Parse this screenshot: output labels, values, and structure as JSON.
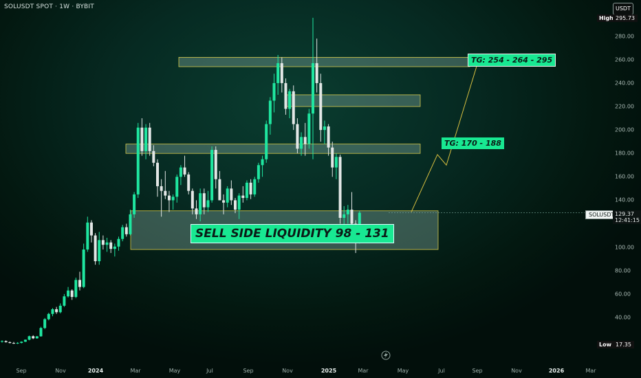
{
  "header": {
    "symbol_line": "SOLUSDT SPOT · 1W · BYBIT"
  },
  "price_axis": {
    "unit_button": "USDT",
    "high_label": "High",
    "high_value": "295.73",
    "low_label": "Low",
    "low_value": "17.35",
    "ticks": [
      "280.00",
      "260.00",
      "240.00",
      "220.00",
      "200.00",
      "180.00",
      "160.00",
      "140.00",
      "100.00",
      "80.00",
      "60.00",
      "40.00"
    ],
    "last_symbol": "SOLUSDT",
    "last_price": "129.37",
    "countdown": "12:41:15"
  },
  "time_axis": {
    "ticks": [
      {
        "label": "Sep",
        "bold": false
      },
      {
        "label": "Nov",
        "bold": false
      },
      {
        "label": "2024",
        "bold": true
      },
      {
        "label": "Mar",
        "bold": false
      },
      {
        "label": "May",
        "bold": false
      },
      {
        "label": "Jul",
        "bold": false
      },
      {
        "label": "Sep",
        "bold": false
      },
      {
        "label": "Nov",
        "bold": false
      },
      {
        "label": "2025",
        "bold": true
      },
      {
        "label": "Mar",
        "bold": false
      },
      {
        "label": "May",
        "bold": false
      },
      {
        "label": "Jul",
        "bold": false
      },
      {
        "label": "Sep",
        "bold": false
      },
      {
        "label": "Nov",
        "bold": false
      },
      {
        "label": "2026",
        "bold": true
      },
      {
        "label": "Mar",
        "bold": false
      }
    ]
  },
  "annotations": {
    "liquidity_label": "SELL SIDE LIQUIDITY 98 - 131",
    "target_mid": "TG: 170 - 188",
    "target_high": "TG: 254 - 264 - 295"
  },
  "colors": {
    "up": "#1fe6a0",
    "down": "#e3e7e6",
    "zone_border": "#d6c94a",
    "label_bg": "#18e892",
    "projection": "#d9c040"
  },
  "chart_data": {
    "type": "candlestick",
    "symbol": "SOLUSDT",
    "interval": "1W",
    "exchange": "BYBIT",
    "y_range": [
      18,
      300
    ],
    "last_price": 129.37,
    "high": 295.73,
    "low": 17.35,
    "zones": [
      {
        "low": 98,
        "high": 131,
        "label": "SELL SIDE LIQUIDITY 98 - 131"
      },
      {
        "low": 180,
        "high": 188
      },
      {
        "low": 220,
        "high": 230
      },
      {
        "low": 254,
        "high": 262
      }
    ],
    "targets": [
      "TG: 170 - 188",
      "TG: 254 - 264 - 295"
    ],
    "projection_path": [
      130,
      179,
      170,
      260
    ],
    "candles": [
      {
        "o": 19.5,
        "h": 20.5,
        "l": 18.5,
        "c": 19.8
      },
      {
        "o": 19.8,
        "h": 20.4,
        "l": 18.6,
        "c": 18.9
      },
      {
        "o": 18.9,
        "h": 19.5,
        "l": 17.9,
        "c": 18.2
      },
      {
        "o": 18.2,
        "h": 19.1,
        "l": 17.4,
        "c": 17.8
      },
      {
        "o": 17.8,
        "h": 18.9,
        "l": 17.35,
        "c": 18.3
      },
      {
        "o": 18.3,
        "h": 19.6,
        "l": 17.9,
        "c": 19.3
      },
      {
        "o": 19.3,
        "h": 21.2,
        "l": 19.0,
        "c": 21.0
      },
      {
        "o": 21.0,
        "h": 24.5,
        "l": 20.5,
        "c": 24.0
      },
      {
        "o": 24.0,
        "h": 24.8,
        "l": 21.5,
        "c": 22.2
      },
      {
        "o": 22.2,
        "h": 24.2,
        "l": 21.8,
        "c": 23.9
      },
      {
        "o": 23.9,
        "h": 32.0,
        "l": 23.6,
        "c": 31.0
      },
      {
        "o": 31.0,
        "h": 39.5,
        "l": 30.0,
        "c": 38.5
      },
      {
        "o": 38.5,
        "h": 44.0,
        "l": 37.5,
        "c": 43.0
      },
      {
        "o": 43.0,
        "h": 48.0,
        "l": 41.0,
        "c": 47.0
      },
      {
        "o": 47.0,
        "h": 49.0,
        "l": 43.0,
        "c": 44.5
      },
      {
        "o": 44.5,
        "h": 52.0,
        "l": 43.5,
        "c": 50.0
      },
      {
        "o": 50.0,
        "h": 60.0,
        "l": 49.0,
        "c": 58.0
      },
      {
        "o": 58.0,
        "h": 66.0,
        "l": 57.0,
        "c": 63.0
      },
      {
        "o": 63.0,
        "h": 64.0,
        "l": 55.0,
        "c": 57.5
      },
      {
        "o": 57.5,
        "h": 74.0,
        "l": 56.5,
        "c": 72.0
      },
      {
        "o": 72.0,
        "h": 79.0,
        "l": 63.0,
        "c": 66.0
      },
      {
        "o": 66.0,
        "h": 103.0,
        "l": 65.0,
        "c": 98.0
      },
      {
        "o": 98.0,
        "h": 126.0,
        "l": 96.0,
        "c": 121.0
      },
      {
        "o": 121.0,
        "h": 123.0,
        "l": 104.0,
        "c": 110.0
      },
      {
        "o": 110.0,
        "h": 112.0,
        "l": 85.0,
        "c": 88.0
      },
      {
        "o": 88.0,
        "h": 113.0,
        "l": 85.0,
        "c": 106.0
      },
      {
        "o": 106.0,
        "h": 110.0,
        "l": 98.0,
        "c": 102.0
      },
      {
        "o": 102.0,
        "h": 108.0,
        "l": 96.0,
        "c": 104.0
      },
      {
        "o": 104.0,
        "h": 106.0,
        "l": 95.0,
        "c": 98.5
      },
      {
        "o": 98.5,
        "h": 103.0,
        "l": 92.0,
        "c": 100.5
      },
      {
        "o": 100.5,
        "h": 109.0,
        "l": 97.0,
        "c": 107.0
      },
      {
        "o": 107.0,
        "h": 119.0,
        "l": 105.0,
        "c": 117.0
      },
      {
        "o": 117.0,
        "h": 120.0,
        "l": 109.0,
        "c": 111.0
      },
      {
        "o": 111.0,
        "h": 132.0,
        "l": 110.0,
        "c": 128.0
      },
      {
        "o": 128.0,
        "h": 147.0,
        "l": 125.0,
        "c": 145.0
      },
      {
        "o": 145.0,
        "h": 206.0,
        "l": 142.0,
        "c": 202.0
      },
      {
        "o": 202.0,
        "h": 210.0,
        "l": 178.0,
        "c": 182.0
      },
      {
        "o": 182.0,
        "h": 205.0,
        "l": 175.0,
        "c": 202.0
      },
      {
        "o": 202.0,
        "h": 206.0,
        "l": 178.0,
        "c": 182.0
      },
      {
        "o": 182.0,
        "h": 187.0,
        "l": 169.0,
        "c": 172.0
      },
      {
        "o": 172.0,
        "h": 175.0,
        "l": 143.0,
        "c": 152.0
      },
      {
        "o": 152.0,
        "h": 158.0,
        "l": 126.0,
        "c": 148.0
      },
      {
        "o": 148.0,
        "h": 165.0,
        "l": 141.0,
        "c": 144.0
      },
      {
        "o": 144.0,
        "h": 148.0,
        "l": 130.0,
        "c": 140.0
      },
      {
        "o": 140.0,
        "h": 145.0,
        "l": 132.0,
        "c": 143.0
      },
      {
        "o": 143.0,
        "h": 162.0,
        "l": 138.0,
        "c": 160.0
      },
      {
        "o": 160.0,
        "h": 170.0,
        "l": 153.0,
        "c": 168.0
      },
      {
        "o": 168.0,
        "h": 178.0,
        "l": 160.0,
        "c": 162.0
      },
      {
        "o": 162.0,
        "h": 164.0,
        "l": 145.0,
        "c": 148.0
      },
      {
        "o": 148.0,
        "h": 150.0,
        "l": 128.0,
        "c": 133.0
      },
      {
        "o": 133.0,
        "h": 140.0,
        "l": 124.0,
        "c": 128.0
      },
      {
        "o": 128.0,
        "h": 150.0,
        "l": 122.0,
        "c": 146.0
      },
      {
        "o": 146.0,
        "h": 150.0,
        "l": 128.0,
        "c": 134.0
      },
      {
        "o": 134.0,
        "h": 148.0,
        "l": 130.0,
        "c": 140.0
      },
      {
        "o": 140.0,
        "h": 186.0,
        "l": 138.0,
        "c": 183.0
      },
      {
        "o": 183.0,
        "h": 186.0,
        "l": 150.0,
        "c": 158.0
      },
      {
        "o": 158.0,
        "h": 165.0,
        "l": 142.0,
        "c": 140.0
      },
      {
        "o": 140.0,
        "h": 145.0,
        "l": 128.0,
        "c": 138.0
      },
      {
        "o": 138.0,
        "h": 152.0,
        "l": 134.0,
        "c": 150.0
      },
      {
        "o": 150.0,
        "h": 157.0,
        "l": 136.0,
        "c": 140.0
      },
      {
        "o": 140.0,
        "h": 142.0,
        "l": 129.0,
        "c": 132.0
      },
      {
        "o": 132.0,
        "h": 146.0,
        "l": 124.0,
        "c": 144.0
      },
      {
        "o": 144.0,
        "h": 152.0,
        "l": 138.0,
        "c": 142.0
      },
      {
        "o": 142.0,
        "h": 157.0,
        "l": 140.0,
        "c": 155.0
      },
      {
        "o": 155.0,
        "h": 158.0,
        "l": 141.0,
        "c": 145.0
      },
      {
        "o": 145.0,
        "h": 160.0,
        "l": 143.0,
        "c": 158.0
      },
      {
        "o": 158.0,
        "h": 172.0,
        "l": 155.0,
        "c": 170.0
      },
      {
        "o": 170.0,
        "h": 178.0,
        "l": 160.0,
        "c": 175.0
      },
      {
        "o": 175.0,
        "h": 208.0,
        "l": 172.0,
        "c": 205.0
      },
      {
        "o": 205.0,
        "h": 228.0,
        "l": 196.0,
        "c": 225.0
      },
      {
        "o": 225.0,
        "h": 248.0,
        "l": 215.0,
        "c": 240.0
      },
      {
        "o": 240.0,
        "h": 264.0,
        "l": 230.0,
        "c": 257.0
      },
      {
        "o": 257.0,
        "h": 262.0,
        "l": 232.0,
        "c": 240.0
      },
      {
        "o": 240.0,
        "h": 244.0,
        "l": 213.0,
        "c": 218.0
      },
      {
        "o": 218.0,
        "h": 235.0,
        "l": 210.0,
        "c": 233.0
      },
      {
        "o": 233.0,
        "h": 238.0,
        "l": 200.0,
        "c": 205.0
      },
      {
        "o": 205.0,
        "h": 210.0,
        "l": 180.0,
        "c": 184.0
      },
      {
        "o": 184.0,
        "h": 198.0,
        "l": 178.0,
        "c": 194.0
      },
      {
        "o": 194.0,
        "h": 206.0,
        "l": 178.0,
        "c": 188.0
      },
      {
        "o": 188.0,
        "h": 218.0,
        "l": 184.0,
        "c": 214.0
      },
      {
        "o": 214.0,
        "h": 295.73,
        "l": 175.0,
        "c": 257.0
      },
      {
        "o": 257.0,
        "h": 278.0,
        "l": 232.0,
        "c": 240.0
      },
      {
        "o": 240.0,
        "h": 248.0,
        "l": 190.0,
        "c": 200.0
      },
      {
        "o": 200.0,
        "h": 208.0,
        "l": 188.0,
        "c": 203.0
      },
      {
        "o": 203.0,
        "h": 205.0,
        "l": 178.0,
        "c": 185.0
      },
      {
        "o": 185.0,
        "h": 190.0,
        "l": 160.0,
        "c": 168.0
      },
      {
        "o": 168.0,
        "h": 180.0,
        "l": 158.0,
        "c": 177.0
      },
      {
        "o": 177.0,
        "h": 179.0,
        "l": 120.0,
        "c": 125.0
      },
      {
        "o": 125.0,
        "h": 135.0,
        "l": 112.0,
        "c": 128.0
      },
      {
        "o": 128.0,
        "h": 136.0,
        "l": 120.0,
        "c": 132.0
      },
      {
        "o": 132.0,
        "h": 147.0,
        "l": 118.0,
        "c": 120.0
      },
      {
        "o": 120.0,
        "h": 123.0,
        "l": 95.0,
        "c": 105.0
      },
      {
        "o": 105.0,
        "h": 131.0,
        "l": 103.0,
        "c": 129.37
      }
    ]
  }
}
